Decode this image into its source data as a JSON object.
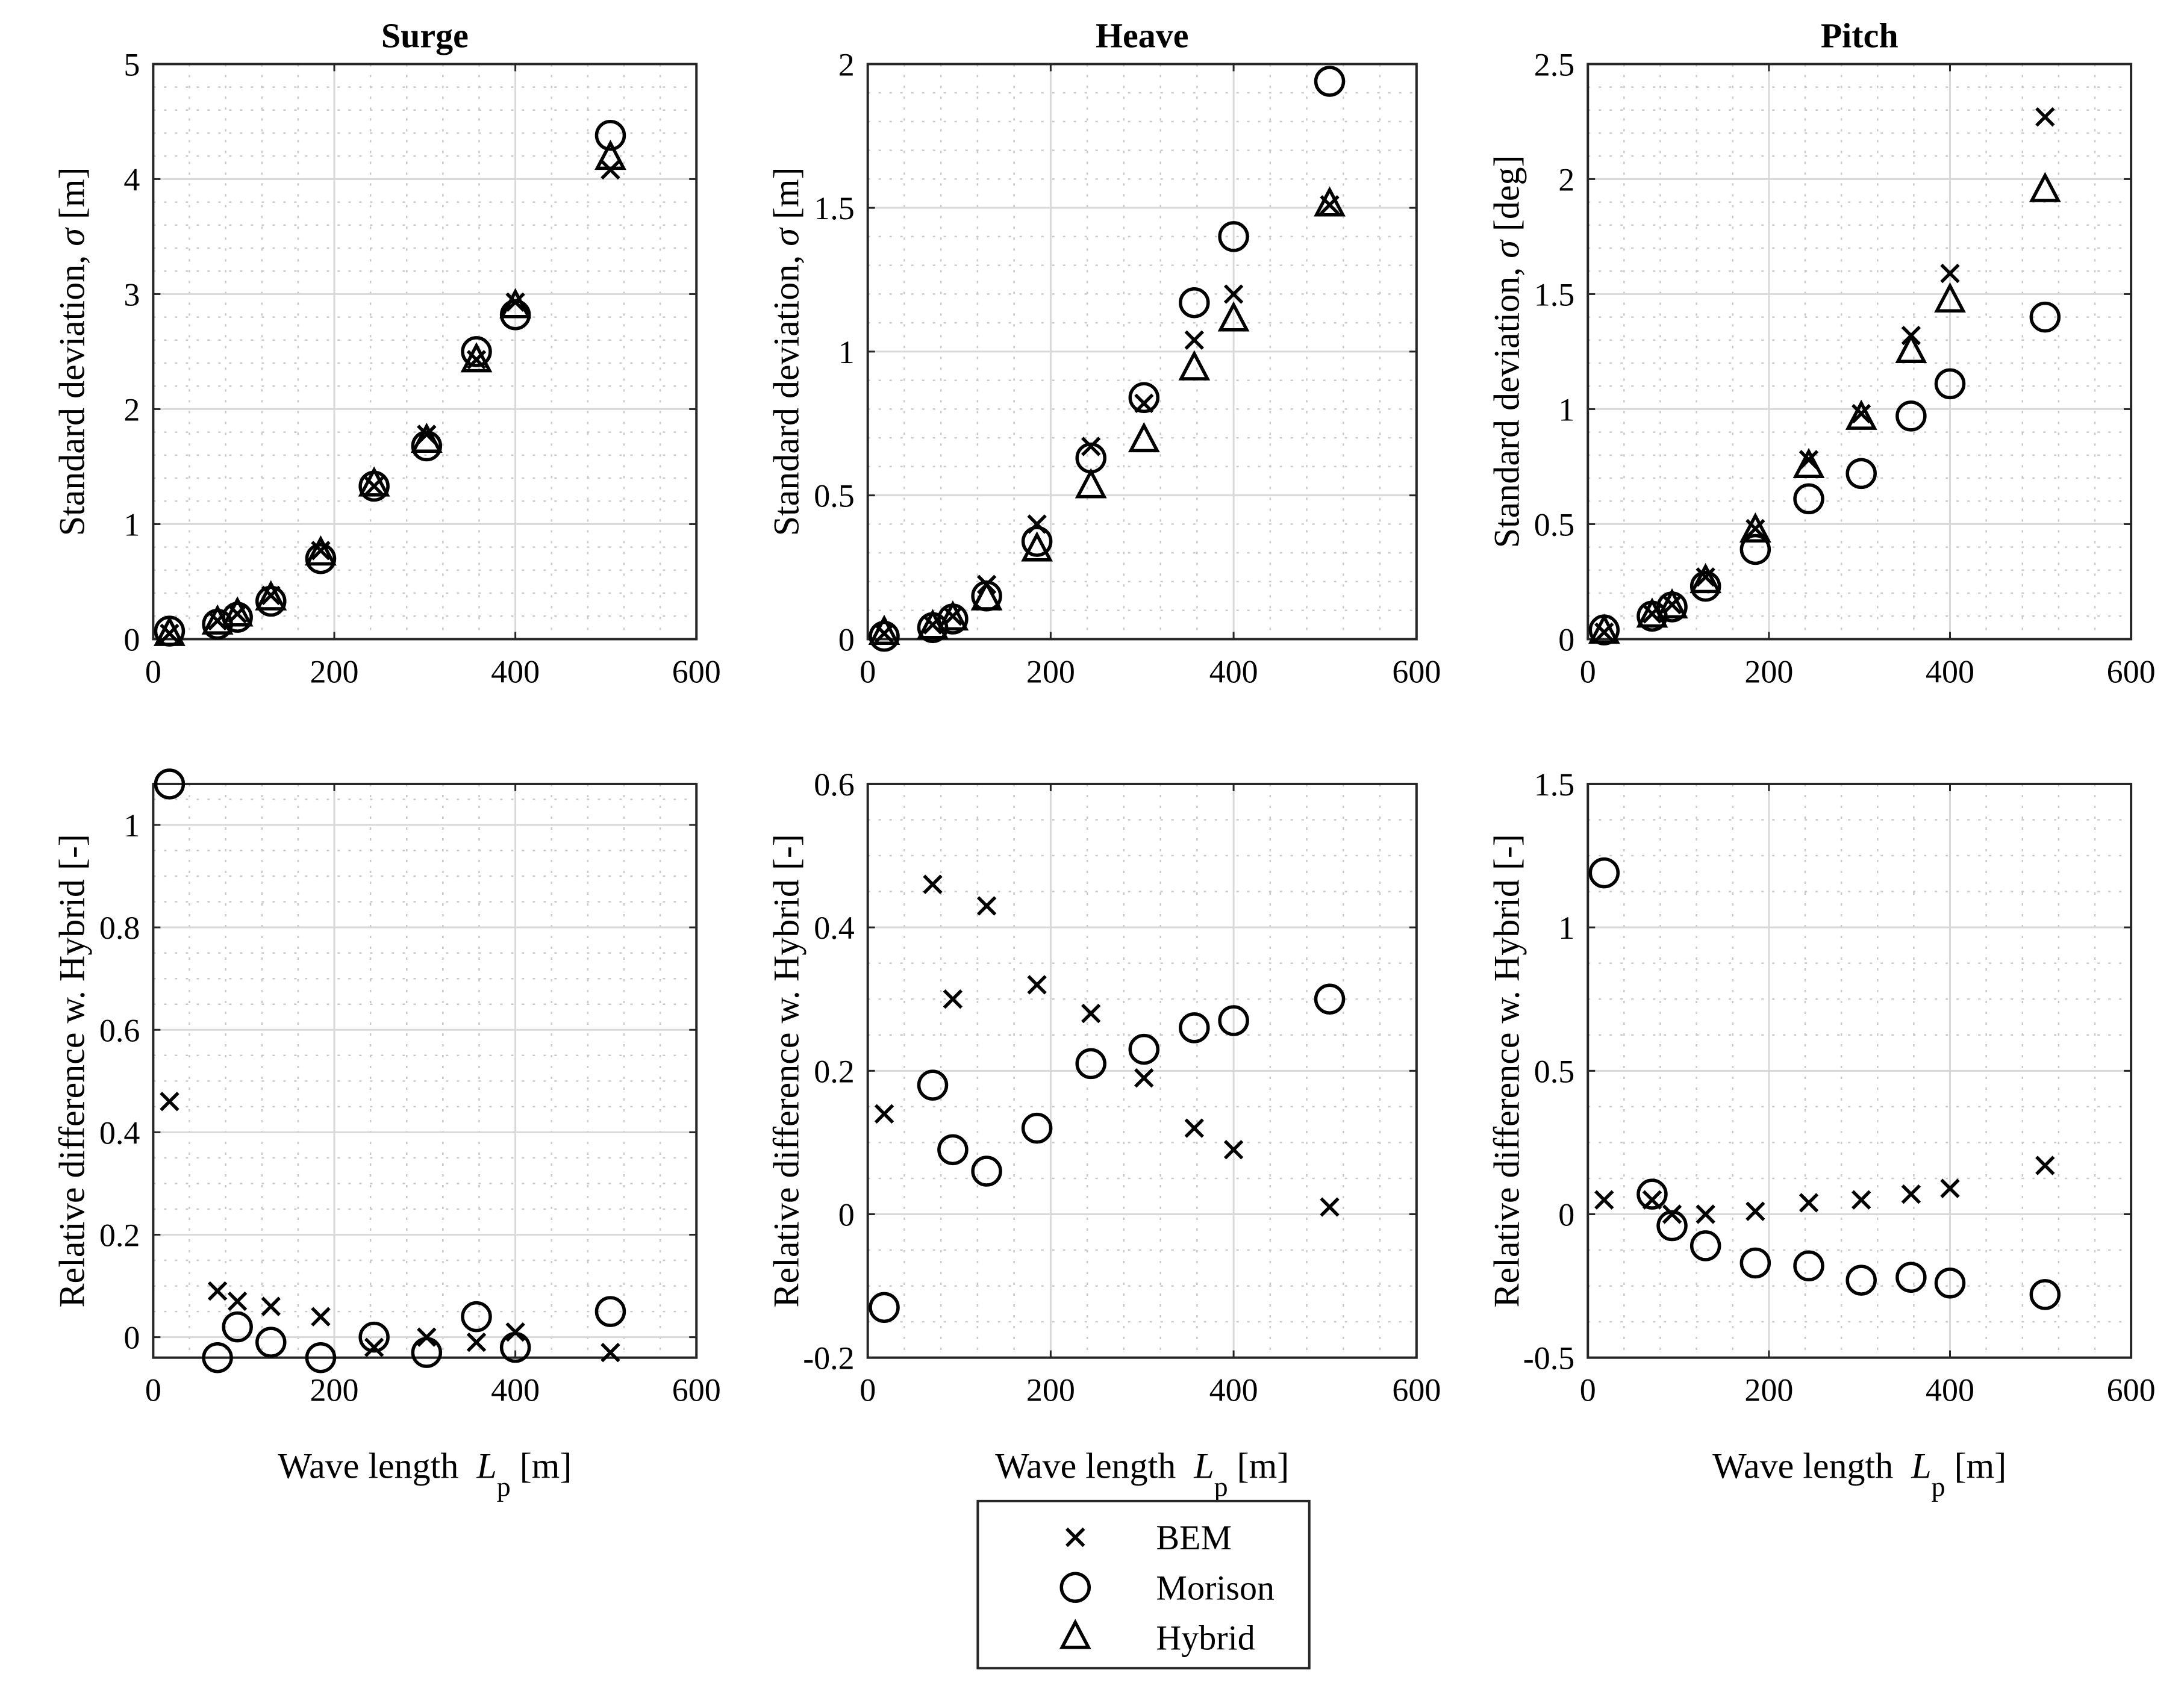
{
  "chart_data": [
    {
      "type": "scatter",
      "title": "Surge",
      "xlabel": "",
      "ylabel": "Standard deviation, σ [m]",
      "xlim": [
        0,
        600
      ],
      "ylim": [
        0,
        5
      ],
      "xticks": [
        0,
        200,
        400,
        600
      ],
      "xtick_labels": [
        "0",
        "200",
        "400",
        "600"
      ],
      "yticks": [
        0,
        1,
        2,
        3,
        4,
        5
      ],
      "ytick_labels": [
        "0",
        "1",
        "2",
        "3",
        "4",
        "5"
      ],
      "minor_x_step": 40,
      "minor_y_step": 0.2,
      "grid": true,
      "series": [
        {
          "name": "BEM",
          "marker": "x",
          "x": [
            18,
            71,
            93,
            130,
            185,
            244,
            302,
            357,
            400,
            505
          ],
          "y": [
            0.05,
            0.16,
            0.22,
            0.38,
            0.77,
            1.33,
            1.78,
            2.43,
            2.93,
            4.08
          ]
        },
        {
          "name": "Morison",
          "marker": "o",
          "x": [
            18,
            71,
            93,
            130,
            185,
            244,
            302,
            357,
            400,
            505
          ],
          "y": [
            0.07,
            0.13,
            0.19,
            0.33,
            0.7,
            1.33,
            1.68,
            2.5,
            2.82,
            4.38
          ]
        },
        {
          "name": "Hybrid",
          "marker": "^",
          "x": [
            18,
            71,
            93,
            130,
            185,
            244,
            302,
            357,
            400,
            505
          ],
          "y": [
            0.04,
            0.14,
            0.21,
            0.35,
            0.74,
            1.34,
            1.72,
            2.42,
            2.89,
            4.18
          ]
        }
      ]
    },
    {
      "type": "scatter",
      "title": "Heave",
      "xlabel": "",
      "ylabel": "Standard deviation, σ [m]",
      "xlim": [
        0,
        600
      ],
      "ylim": [
        0,
        2
      ],
      "xticks": [
        0,
        200,
        400,
        600
      ],
      "xtick_labels": [
        "0",
        "200",
        "400",
        "600"
      ],
      "yticks": [
        0,
        0.5,
        1,
        1.5,
        2
      ],
      "ytick_labels": [
        "0",
        "0.5",
        "1",
        "1.5",
        "2"
      ],
      "minor_x_step": 40,
      "minor_y_step": 0.1,
      "grid": true,
      "series": [
        {
          "name": "BEM",
          "marker": "x",
          "x": [
            18,
            71,
            93,
            130,
            185,
            244,
            302,
            357,
            400,
            505
          ],
          "y": [
            0.02,
            0.05,
            0.08,
            0.19,
            0.4,
            0.67,
            0.82,
            1.04,
            1.2,
            1.51
          ]
        },
        {
          "name": "Morison",
          "marker": "o",
          "x": [
            18,
            71,
            93,
            130,
            185,
            244,
            302,
            357,
            400,
            505
          ],
          "y": [
            0.01,
            0.04,
            0.07,
            0.15,
            0.34,
            0.63,
            0.84,
            1.17,
            1.4,
            1.94
          ]
        },
        {
          "name": "Hybrid",
          "marker": "^",
          "x": [
            18,
            71,
            93,
            130,
            185,
            244,
            302,
            357,
            400,
            505
          ],
          "y": [
            0.02,
            0.04,
            0.07,
            0.14,
            0.31,
            0.53,
            0.69,
            0.94,
            1.11,
            1.51
          ]
        }
      ]
    },
    {
      "type": "scatter",
      "title": "Pitch",
      "xlabel": "",
      "ylabel": "Standard deviation, σ [deg]",
      "xlim": [
        0,
        600
      ],
      "ylim": [
        0,
        2.5
      ],
      "xticks": [
        0,
        200,
        400,
        600
      ],
      "xtick_labels": [
        "0",
        "200",
        "400",
        "600"
      ],
      "yticks": [
        0,
        0.5,
        1,
        1.5,
        2,
        2.5
      ],
      "ytick_labels": [
        "0",
        "0.5",
        "1",
        "1.5",
        "2",
        "2.5"
      ],
      "minor_x_step": 40,
      "minor_y_step": 0.1,
      "grid": true,
      "series": [
        {
          "name": "BEM",
          "marker": "x",
          "x": [
            18,
            71,
            93,
            130,
            185,
            244,
            302,
            357,
            400,
            505
          ],
          "y": [
            0.03,
            0.11,
            0.15,
            0.27,
            0.48,
            0.78,
            0.98,
            1.32,
            1.59,
            2.27
          ]
        },
        {
          "name": "Morison",
          "marker": "o",
          "x": [
            18,
            71,
            93,
            130,
            185,
            244,
            302,
            357,
            400,
            505
          ],
          "y": [
            0.04,
            0.1,
            0.14,
            0.23,
            0.39,
            0.61,
            0.72,
            0.97,
            1.11,
            1.4
          ]
        },
        {
          "name": "Hybrid",
          "marker": "^",
          "x": [
            18,
            71,
            93,
            130,
            185,
            244,
            302,
            357,
            400,
            505
          ],
          "y": [
            0.03,
            0.1,
            0.14,
            0.25,
            0.47,
            0.75,
            0.96,
            1.25,
            1.47,
            1.95
          ]
        }
      ]
    },
    {
      "type": "scatter",
      "title": "",
      "xlabel": "Wave length  L_p [m]",
      "ylabel": "Relative difference w. Hybrid [-]",
      "xlim": [
        0,
        600
      ],
      "ylim": [
        -0.04,
        1.08
      ],
      "xticks": [
        0,
        200,
        400,
        600
      ],
      "xtick_labels": [
        "0",
        "200",
        "400",
        "600"
      ],
      "yticks": [
        0,
        0.2,
        0.4,
        0.6,
        0.8,
        1
      ],
      "ytick_labels": [
        "0",
        "0.2",
        "0.4",
        "0.6",
        "0.8",
        "1"
      ],
      "minor_x_step": 40,
      "minor_y_step": 0.05,
      "grid": true,
      "series": [
        {
          "name": "BEM",
          "marker": "x",
          "x": [
            18,
            71,
            93,
            130,
            185,
            244,
            302,
            357,
            400,
            505
          ],
          "y": [
            0.46,
            0.09,
            0.07,
            0.06,
            0.04,
            -0.02,
            0.0,
            -0.01,
            0.01,
            -0.03
          ]
        },
        {
          "name": "Morison",
          "marker": "o",
          "x": [
            18,
            71,
            93,
            130,
            185,
            244,
            302,
            357,
            400,
            505
          ],
          "y": [
            1.08,
            -0.04,
            0.02,
            -0.01,
            -0.04,
            0.0,
            -0.03,
            0.04,
            -0.02,
            0.05
          ]
        }
      ]
    },
    {
      "type": "scatter",
      "title": "",
      "xlabel": "Wave length  L_p [m]",
      "ylabel": "Relative difference w. Hybrid [-]",
      "xlim": [
        0,
        600
      ],
      "ylim": [
        -0.2,
        0.6
      ],
      "xticks": [
        0,
        200,
        400,
        600
      ],
      "xtick_labels": [
        "0",
        "200",
        "400",
        "600"
      ],
      "yticks": [
        -0.2,
        0,
        0.2,
        0.4,
        0.6
      ],
      "ytick_labels": [
        "-0.2",
        "0",
        "0.2",
        "0.4",
        "0.6"
      ],
      "minor_x_step": 40,
      "minor_y_step": 0.05,
      "grid": true,
      "series": [
        {
          "name": "BEM",
          "marker": "x",
          "x": [
            18,
            71,
            93,
            130,
            185,
            244,
            302,
            357,
            400,
            505
          ],
          "y": [
            0.14,
            0.46,
            0.3,
            0.43,
            0.32,
            0.28,
            0.19,
            0.12,
            0.09,
            0.01
          ]
        },
        {
          "name": "Morison",
          "marker": "o",
          "x": [
            18,
            71,
            93,
            130,
            185,
            244,
            302,
            357,
            400,
            505
          ],
          "y": [
            -0.13,
            0.18,
            0.09,
            0.06,
            0.12,
            0.21,
            0.23,
            0.26,
            0.27,
            0.3
          ]
        }
      ]
    },
    {
      "type": "scatter",
      "title": "",
      "xlabel": "Wave length  L_p [m]",
      "ylabel": "Relative difference w. Hybrid [-]",
      "xlim": [
        0,
        600
      ],
      "ylim": [
        -0.5,
        1.5
      ],
      "xticks": [
        0,
        200,
        400,
        600
      ],
      "xtick_labels": [
        "0",
        "200",
        "400",
        "600"
      ],
      "yticks": [
        -0.5,
        0,
        0.5,
        1,
        1.5
      ],
      "ytick_labels": [
        "-0.5",
        "0",
        "0.5",
        "1",
        "1.5"
      ],
      "minor_x_step": 40,
      "minor_y_step": 0.125,
      "grid": true,
      "series": [
        {
          "name": "BEM",
          "marker": "x",
          "x": [
            18,
            71,
            93,
            130,
            185,
            244,
            302,
            357,
            400,
            505
          ],
          "y": [
            0.05,
            0.05,
            0.0,
            0.0,
            0.01,
            0.04,
            0.05,
            0.07,
            0.09,
            0.17
          ]
        },
        {
          "name": "Morison",
          "marker": "o",
          "x": [
            18,
            71,
            93,
            130,
            185,
            244,
            302,
            357,
            400,
            505
          ],
          "y": [
            1.19,
            0.07,
            -0.04,
            -0.11,
            -0.17,
            -0.18,
            -0.23,
            -0.22,
            -0.24,
            -0.28
          ]
        }
      ]
    }
  ],
  "legend": {
    "position": "bottom-center",
    "entries": [
      {
        "label": "BEM",
        "marker": "x"
      },
      {
        "label": "Morison",
        "marker": "o"
      },
      {
        "label": "Hybrid",
        "marker": "^"
      }
    ]
  }
}
